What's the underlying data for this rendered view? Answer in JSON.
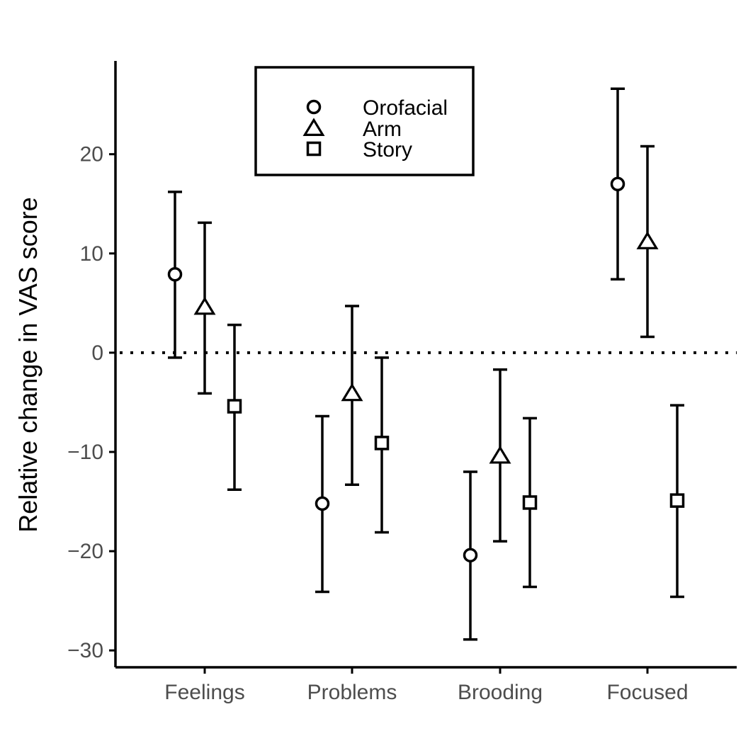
{
  "chart_data": {
    "type": "scatter",
    "categories": [
      "Feelings",
      "Problems",
      "Brooding",
      "Focused"
    ],
    "series": [
      {
        "name": "Orofacial",
        "marker": "circle",
        "values": [
          7.9,
          -15.2,
          -20.4,
          17.0
        ],
        "lower": [
          -0.5,
          -24.1,
          -28.9,
          7.4
        ],
        "upper": [
          16.2,
          -6.4,
          -12.0,
          26.6
        ]
      },
      {
        "name": "Arm",
        "marker": "triangle",
        "values": [
          4.6,
          -4.1,
          -10.4,
          11.2
        ],
        "lower": [
          -4.1,
          -13.3,
          -19.0,
          1.6
        ],
        "upper": [
          13.1,
          4.7,
          -1.7,
          20.8
        ]
      },
      {
        "name": "Story",
        "marker": "square",
        "values": [
          -5.4,
          -9.1,
          -15.1,
          -14.9
        ],
        "lower": [
          -13.8,
          -18.1,
          -23.6,
          -24.6
        ],
        "upper": [
          2.8,
          -0.5,
          -6.6,
          -5.3
        ]
      }
    ],
    "xlabel": "",
    "ylabel": "Relative change in VAS score",
    "ylim": [
      -31.7,
      29.4
    ],
    "yticks": [
      20,
      10,
      0,
      -10,
      -20,
      -30
    ],
    "ytick_labels": [
      "20",
      "10",
      "0",
      "−10",
      "−20",
      "−30"
    ],
    "reference_line": 0,
    "grid": false,
    "legend_position": "top-center",
    "colors": {
      "ink": "#000000",
      "tick_text": "#4d4d4d",
      "background": "#ffffff"
    }
  }
}
